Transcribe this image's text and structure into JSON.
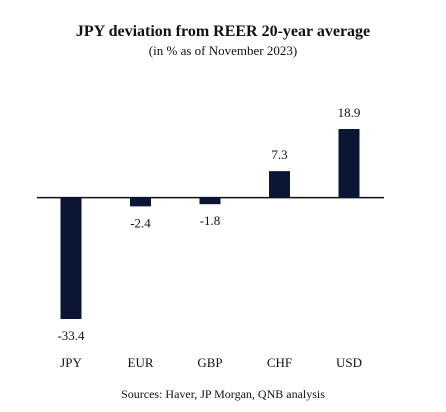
{
  "chart_data": {
    "type": "bar",
    "title": "JPY deviation from REER 20-year average",
    "subtitle": "(in % as of November 2023)",
    "categories": [
      "JPY",
      "EUR",
      "GBP",
      "CHF",
      "USD"
    ],
    "values": [
      -33.4,
      -2.4,
      -1.8,
      7.3,
      18.9
    ],
    "value_labels": [
      "-33.4",
      "-2.4",
      "-1.8",
      "7.3",
      "18.9"
    ],
    "xlabel": "",
    "ylabel": "",
    "ylim": [
      -33.4,
      18.9
    ],
    "grid": false,
    "legend": "none",
    "bar_color": "#0b1535",
    "source": "Sources: Haver, JP Morgan, QNB analysis"
  }
}
